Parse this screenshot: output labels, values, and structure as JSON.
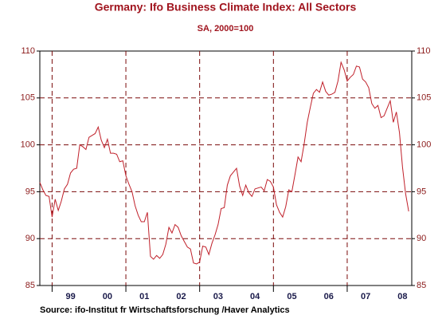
{
  "chart_data": {
    "type": "line",
    "title": "Germany: Ifo Business Climate Index: All Sectors",
    "subtitle": "SA, 2000=100",
    "source": "Source:  ifo-Institut fr Wirtschaftsforschung /Haver Analytics",
    "color": "#c0202a",
    "grid_color": "#7a0a0a",
    "xlim": [
      1998.667,
      2008.75
    ],
    "xgrid": [
      1999,
      2001,
      2003,
      2005,
      2007
    ],
    "xticks": [
      {
        "value": 1999.5,
        "label": "99"
      },
      {
        "value": 2000.5,
        "label": "00"
      },
      {
        "value": 2001.5,
        "label": "01"
      },
      {
        "value": 2002.5,
        "label": "02"
      },
      {
        "value": 2003.5,
        "label": "03"
      },
      {
        "value": 2004.5,
        "label": "04"
      },
      {
        "value": 2005.5,
        "label": "05"
      },
      {
        "value": 2006.5,
        "label": "06"
      },
      {
        "value": 2007.5,
        "label": "07"
      },
      {
        "value": 2008.5,
        "label": "08"
      }
    ],
    "ylim": [
      85,
      110
    ],
    "yticks": [
      85,
      90,
      95,
      100,
      105,
      110
    ],
    "grid": true,
    "x": [
      1998.667,
      1998.75,
      1998.833,
      1998.917,
      1999,
      1999.083,
      1999.167,
      1999.25,
      1999.333,
      1999.417,
      1999.5,
      1999.583,
      1999.667,
      1999.75,
      1999.833,
      1999.917,
      2000,
      2000.083,
      2000.167,
      2000.25,
      2000.333,
      2000.417,
      2000.5,
      2000.583,
      2000.667,
      2000.75,
      2000.833,
      2000.917,
      2001,
      2001.083,
      2001.167,
      2001.25,
      2001.333,
      2001.417,
      2001.5,
      2001.583,
      2001.667,
      2001.75,
      2001.833,
      2001.917,
      2002,
      2002.083,
      2002.167,
      2002.25,
      2002.333,
      2002.417,
      2002.5,
      2002.583,
      2002.667,
      2002.75,
      2002.833,
      2002.917,
      2003,
      2003.083,
      2003.167,
      2003.25,
      2003.333,
      2003.417,
      2003.5,
      2003.583,
      2003.667,
      2003.75,
      2003.833,
      2003.917,
      2004,
      2004.083,
      2004.167,
      2004.25,
      2004.333,
      2004.417,
      2004.5,
      2004.583,
      2004.667,
      2004.75,
      2004.833,
      2004.917,
      2005,
      2005.083,
      2005.167,
      2005.25,
      2005.333,
      2005.417,
      2005.5,
      2005.583,
      2005.667,
      2005.75,
      2005.833,
      2005.917,
      2006,
      2006.083,
      2006.167,
      2006.25,
      2006.333,
      2006.417,
      2006.5,
      2006.583,
      2006.667,
      2006.75,
      2006.833,
      2006.917,
      2007,
      2007.083,
      2007.167,
      2007.25,
      2007.333,
      2007.417,
      2007.5,
      2007.583,
      2007.667,
      2007.75,
      2007.833,
      2007.917,
      2008,
      2008.083,
      2008.167,
      2008.25,
      2008.333,
      2008.417,
      2008.5,
      2008.583,
      2008.667
    ],
    "values": [
      96,
      95.2,
      94.6,
      94.5,
      92.3,
      94.2,
      93,
      94,
      95.3,
      95.8,
      97,
      97.4,
      97.5,
      100,
      99.8,
      99.5,
      100.8,
      101,
      101.2,
      101.9,
      100.5,
      99.7,
      100.6,
      99.1,
      99.1,
      99,
      98.2,
      98.3,
      96.7,
      95.8,
      95,
      93.5,
      92.5,
      91.8,
      91.8,
      92.8,
      88.1,
      87.8,
      88.2,
      87.9,
      88.3,
      89.4,
      91.2,
      90.6,
      91.5,
      91.2,
      90.3,
      89.7,
      89.1,
      88.9,
      87.4,
      87.3,
      87.5,
      89.2,
      89.1,
      88.3,
      89.5,
      90.4,
      91.5,
      93.2,
      93.3,
      95.7,
      96.7,
      97.1,
      97.5,
      95.6,
      94.6,
      95.7,
      94.9,
      94.5,
      95.3,
      95.4,
      95.5,
      95.1,
      96.3,
      96.1,
      95.5,
      93.6,
      92.8,
      92.3,
      93.4,
      95.2,
      95,
      96.8,
      98.7,
      98.2,
      100.1,
      102.4,
      104,
      105.5,
      105.9,
      105.6,
      106.7,
      105.7,
      105.3,
      105.4,
      105.6,
      106.8,
      108.8,
      108,
      106.8,
      107.2,
      107.5,
      108.4,
      108.3,
      107,
      106.7,
      106.1,
      104.4,
      103.9,
      104.2,
      102.9,
      103.1,
      103.9,
      104.7,
      102.4,
      103.5,
      101.3,
      97.6,
      94.8,
      92.9
    ]
  }
}
